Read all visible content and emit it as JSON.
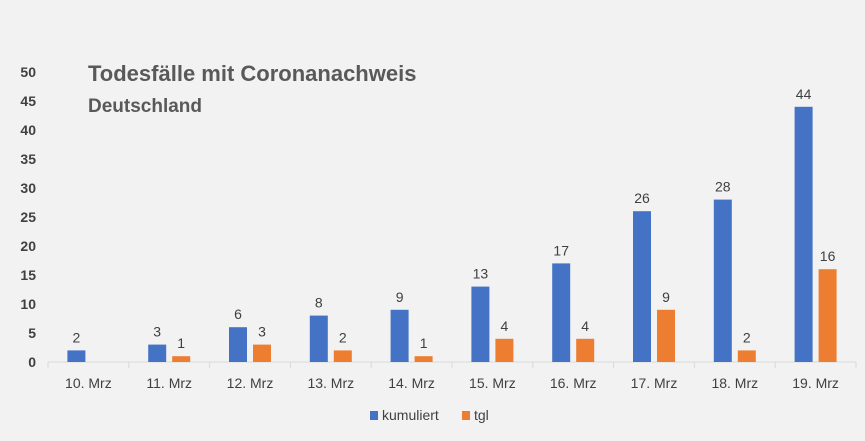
{
  "chart_data": {
    "type": "bar",
    "title": "Todesfälle mit Coronanachweis",
    "subtitle": "Deutschland",
    "categories": [
      "10. Mrz",
      "11. Mrz",
      "12. Mrz",
      "13. Mrz",
      "14. Mrz",
      "15. Mrz",
      "16. Mrz",
      "17. Mrz",
      "18. Mrz",
      "19. Mrz"
    ],
    "series": [
      {
        "name": "kumuliert",
        "color": "#4472c4",
        "values": [
          2,
          3,
          6,
          8,
          9,
          13,
          17,
          26,
          28,
          44
        ]
      },
      {
        "name": "tgl",
        "color": "#ed7d31",
        "values": [
          null,
          1,
          3,
          2,
          1,
          4,
          4,
          9,
          2,
          16
        ]
      }
    ],
    "yticks": [
      "0",
      "5",
      "10",
      "15",
      "20",
      "25",
      "30",
      "35",
      "40",
      "45",
      "50"
    ],
    "ylim": [
      0,
      50
    ],
    "grid": false,
    "legend_position": "bottom",
    "data_labels": true
  }
}
